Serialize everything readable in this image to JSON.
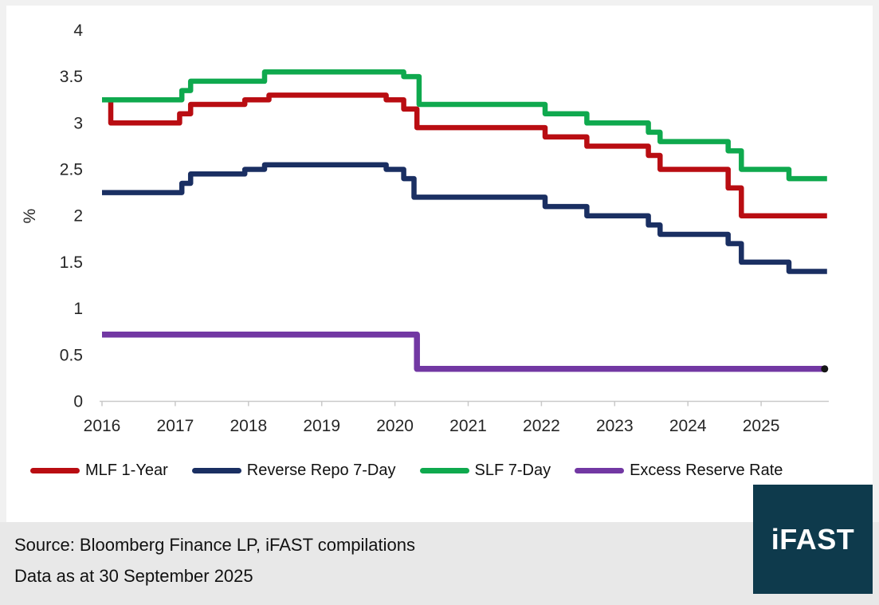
{
  "footer": {
    "source_line": "Source: Bloomberg Finance LP, iFAST compilations",
    "date_line": "Data as at 30 September 2025",
    "bg_color": "#e8e8e8"
  },
  "logo": {
    "text": "iFAST",
    "bg_color": "#0e3a4c",
    "text_color": "#ffffff"
  },
  "chart_data": {
    "type": "line",
    "step": true,
    "title": "",
    "xlabel": "",
    "ylabel": "%",
    "ylim": [
      0,
      4
    ],
    "xlim": [
      2016,
      2025.9
    ],
    "grid": false,
    "legend_position": "bottom",
    "axis_color": "#c9c9c9",
    "label_color": "#262626",
    "y_ticks": [
      "0",
      "0.5",
      "1",
      "1.5",
      "2",
      "2.5",
      "3",
      "3.5",
      "4"
    ],
    "x_ticks": [
      "2016",
      "2017",
      "2018",
      "2019",
      "2020",
      "2021",
      "2022",
      "2023",
      "2024",
      "2025"
    ],
    "series": [
      {
        "name": "MLF 1-Year",
        "color": "#b90d12",
        "width": 6.5,
        "points": [
          [
            2016.0,
            3.25
          ],
          [
            2016.12,
            3.0
          ],
          [
            2017.06,
            3.1
          ],
          [
            2017.21,
            3.2
          ],
          [
            2017.95,
            3.25
          ],
          [
            2018.28,
            3.3
          ],
          [
            2019.88,
            3.25
          ],
          [
            2020.12,
            3.15
          ],
          [
            2020.3,
            2.95
          ],
          [
            2022.05,
            2.85
          ],
          [
            2022.62,
            2.75
          ],
          [
            2023.46,
            2.65
          ],
          [
            2023.62,
            2.5
          ],
          [
            2024.55,
            2.3
          ],
          [
            2024.73,
            2.0
          ],
          [
            2025.75,
            2.0
          ]
        ]
      },
      {
        "name": "Reverse Repo 7-Day",
        "color": "#1a2f62",
        "width": 6.5,
        "points": [
          [
            2016.0,
            2.25
          ],
          [
            2017.09,
            2.35
          ],
          [
            2017.21,
            2.45
          ],
          [
            2017.95,
            2.5
          ],
          [
            2018.22,
            2.55
          ],
          [
            2019.88,
            2.5
          ],
          [
            2020.12,
            2.4
          ],
          [
            2020.26,
            2.2
          ],
          [
            2022.05,
            2.1
          ],
          [
            2022.62,
            2.0
          ],
          [
            2023.46,
            1.9
          ],
          [
            2023.62,
            1.8
          ],
          [
            2024.55,
            1.7
          ],
          [
            2024.73,
            1.5
          ],
          [
            2025.38,
            1.4
          ],
          [
            2025.75,
            1.4
          ]
        ]
      },
      {
        "name": "SLF 7-Day",
        "color": "#0fa94e",
        "width": 6.5,
        "points": [
          [
            2016.0,
            3.25
          ],
          [
            2017.09,
            3.35
          ],
          [
            2017.21,
            3.45
          ],
          [
            2018.22,
            3.55
          ],
          [
            2020.12,
            3.5
          ],
          [
            2020.33,
            3.2
          ],
          [
            2022.05,
            3.1
          ],
          [
            2022.62,
            3.0
          ],
          [
            2023.46,
            2.9
          ],
          [
            2023.62,
            2.8
          ],
          [
            2024.55,
            2.7
          ],
          [
            2024.73,
            2.5
          ],
          [
            2025.38,
            2.4
          ],
          [
            2025.75,
            2.4
          ]
        ]
      },
      {
        "name": "Excess Reserve Rate",
        "color": "#7238a3",
        "width": 7.5,
        "points": [
          [
            2016.0,
            0.72
          ],
          [
            2020.3,
            0.35
          ],
          [
            2025.75,
            0.35
          ]
        ]
      }
    ],
    "end_marker": {
      "series": "Excess Reserve Rate",
      "value": 0.35,
      "color": "#161616"
    }
  }
}
